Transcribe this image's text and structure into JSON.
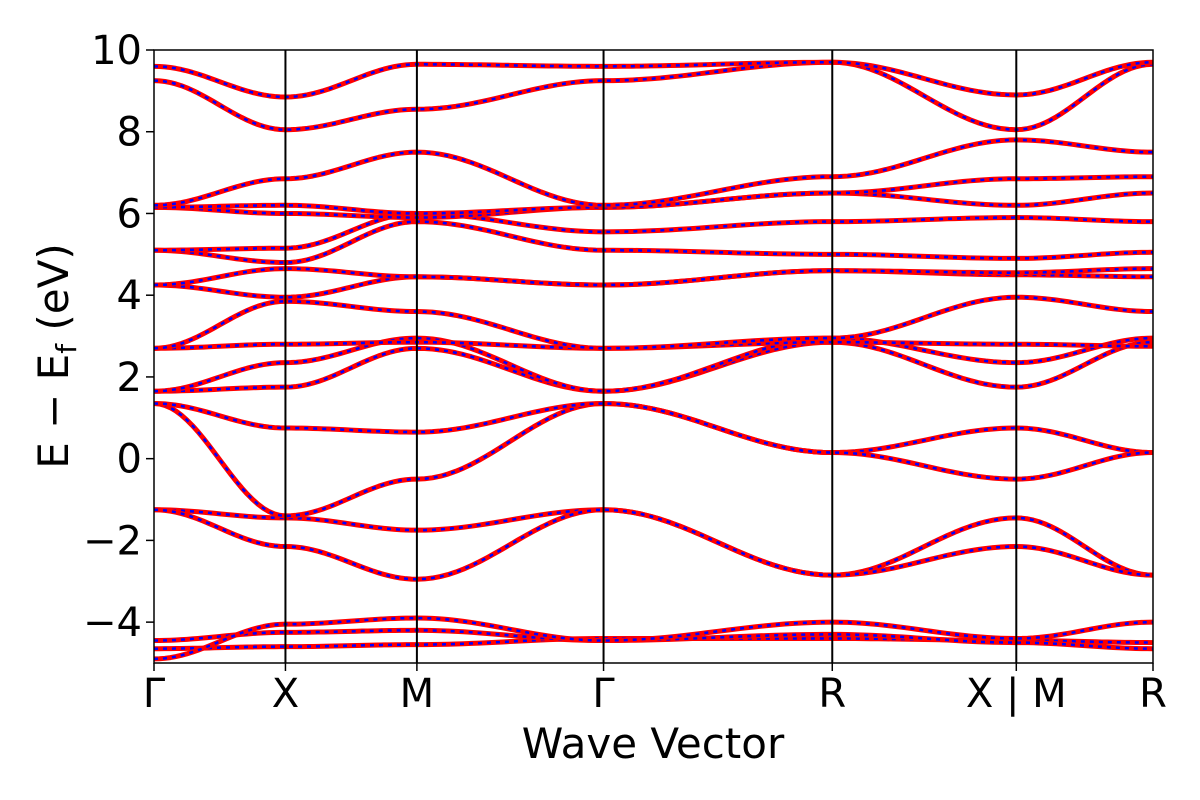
{
  "chart_data": {
    "type": "line",
    "xlabel": "Wave Vector",
    "ylabel_parts": {
      "main": "E − E",
      "sub": "f",
      "unit": " (eV)"
    },
    "ylim": [
      -5,
      10
    ],
    "y_ticks": [
      -4,
      -2,
      0,
      2,
      4,
      6,
      8,
      10
    ],
    "y_tick_labels": [
      "−4",
      "−2",
      "0",
      "2",
      "4",
      "6",
      "8",
      "10"
    ],
    "x_range": [
      0,
      7.6
    ],
    "k_points": [
      {
        "label": "Γ",
        "x": 0.0
      },
      {
        "label": "X",
        "x": 1.0
      },
      {
        "label": "M",
        "x": 2.0
      },
      {
        "label": "Γ",
        "x": 3.42
      },
      {
        "label": "R",
        "x": 5.16
      },
      {
        "label": "X | M",
        "x": 6.56
      },
      {
        "label": "R",
        "x": 7.6
      }
    ],
    "line_colors": {
      "solid": "#ff0000",
      "dashed": "#0000ff"
    },
    "series": [
      {
        "values": [
          -4.65,
          -4.6,
          -4.55,
          -4.4,
          -4.4,
          -4.45,
          -4.5
        ]
      },
      {
        "values": [
          -4.45,
          -4.25,
          -4.2,
          -4.45,
          -4.3,
          -4.5,
          -4.65
        ]
      },
      {
        "values": [
          -4.9,
          -4.05,
          -3.9,
          -4.45,
          -4.0,
          -4.4,
          -4.0
        ]
      },
      {
        "values": [
          -1.25,
          -1.45,
          -1.75,
          -1.25,
          -2.85,
          -1.45,
          -2.85
        ]
      },
      {
        "values": [
          -1.25,
          -2.15,
          -2.95,
          -1.25,
          -2.85,
          -2.15,
          -2.85
        ]
      },
      {
        "values": [
          1.35,
          -1.4,
          -0.5,
          1.35,
          0.15,
          0.75,
          0.15
        ]
      },
      {
        "values": [
          1.35,
          0.75,
          0.65,
          1.35,
          0.15,
          -0.5,
          0.15
        ]
      },
      {
        "values": [
          1.65,
          1.75,
          2.7,
          1.65,
          2.85,
          1.75,
          2.85
        ]
      },
      {
        "values": [
          1.65,
          2.35,
          2.95,
          1.65,
          2.95,
          2.35,
          2.95
        ]
      },
      {
        "values": [
          2.7,
          2.8,
          2.85,
          2.7,
          2.85,
          2.8,
          2.75
        ]
      },
      {
        "values": [
          2.7,
          3.85,
          3.6,
          2.7,
          2.95,
          3.95,
          3.6
        ]
      },
      {
        "values": [
          4.25,
          3.95,
          4.45,
          4.25,
          4.6,
          4.5,
          4.45
        ]
      },
      {
        "values": [
          4.25,
          4.65,
          4.45,
          4.25,
          4.6,
          4.55,
          4.65
        ]
      },
      {
        "values": [
          5.1,
          4.8,
          5.8,
          5.1,
          5.0,
          4.9,
          5.05
        ]
      },
      {
        "values": [
          5.1,
          5.15,
          6.0,
          5.55,
          5.8,
          5.9,
          5.8
        ]
      },
      {
        "values": [
          6.15,
          6.0,
          5.9,
          6.15,
          6.5,
          6.2,
          6.5
        ]
      },
      {
        "values": [
          6.15,
          6.2,
          6.0,
          6.15,
          6.5,
          6.85,
          6.9
        ]
      },
      {
        "values": [
          6.2,
          6.85,
          7.5,
          6.2,
          6.9,
          7.8,
          7.5
        ]
      },
      {
        "values": [
          9.25,
          8.05,
          8.55,
          9.25,
          9.7,
          8.05,
          9.65
        ]
      },
      {
        "values": [
          9.6,
          8.85,
          9.65,
          9.6,
          9.7,
          8.9,
          9.7
        ]
      }
    ]
  }
}
